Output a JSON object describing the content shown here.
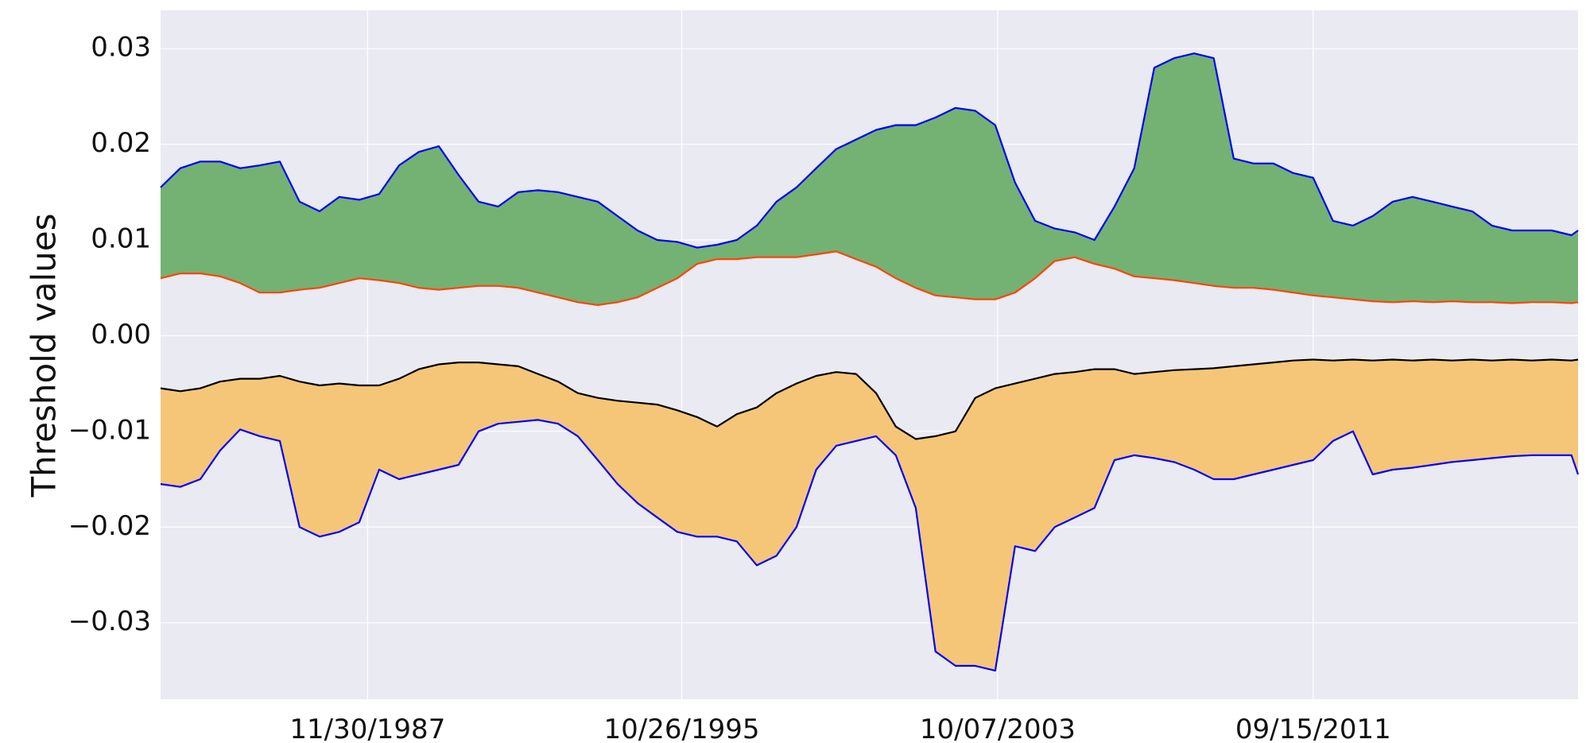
{
  "chart_data": {
    "type": "area",
    "title": "",
    "xlabel": "",
    "ylabel": "Threshold values",
    "x_ticks": [
      "11/30/1987",
      "10/26/1995",
      "10/07/2003",
      "09/15/2011"
    ],
    "x_range": [
      "1982-09-15",
      "2018-05-15"
    ],
    "ylim": [
      -0.038,
      0.034
    ],
    "y_ticks": [
      0.03,
      0.02,
      0.01,
      0.0,
      -0.01,
      -0.02,
      -0.03
    ],
    "y_tick_labels": [
      "0.03",
      "0.02",
      "0.01",
      "0.00",
      "−0.01",
      "−0.02",
      "−0.03"
    ],
    "grid": true,
    "colors": {
      "background": "#eaeaf2",
      "grid": "#ffffff",
      "upper_outer": "#0000ff",
      "upper_inner": "#ff4500",
      "upper_fill": "#73b273",
      "lower_inner": "#000000",
      "lower_outer": "#0000ff",
      "lower_fill": "#f5c678"
    },
    "dates": [
      "1982-09-15",
      "1983-03-15",
      "1983-09-15",
      "1984-03-15",
      "1984-09-15",
      "1985-03-15",
      "1985-09-15",
      "1986-03-15",
      "1986-09-15",
      "1987-03-15",
      "1987-09-15",
      "1988-03-15",
      "1988-09-15",
      "1989-03-15",
      "1989-09-15",
      "1990-03-15",
      "1990-09-15",
      "1991-03-15",
      "1991-09-15",
      "1992-03-15",
      "1992-09-15",
      "1993-03-15",
      "1993-09-15",
      "1994-03-15",
      "1994-09-15",
      "1995-03-15",
      "1995-09-15",
      "1996-03-15",
      "1996-09-15",
      "1997-03-15",
      "1997-09-15",
      "1998-03-15",
      "1998-09-15",
      "1999-03-15",
      "1999-09-15",
      "2000-03-15",
      "2000-09-15",
      "2001-03-15",
      "2001-09-15",
      "2002-03-15",
      "2002-09-15",
      "2003-03-15",
      "2003-09-15",
      "2004-03-15",
      "2004-09-15",
      "2005-03-15",
      "2005-09-15",
      "2006-03-15",
      "2006-09-15",
      "2007-03-15",
      "2007-09-15",
      "2008-03-15",
      "2008-09-15",
      "2009-03-15",
      "2009-09-15",
      "2010-03-15",
      "2010-09-15",
      "2011-03-15",
      "2011-09-15",
      "2012-03-15",
      "2012-09-15",
      "2013-03-15",
      "2013-09-15",
      "2014-03-15",
      "2014-09-15",
      "2015-03-15",
      "2015-09-15",
      "2016-03-15",
      "2016-09-15",
      "2017-03-15",
      "2017-09-15",
      "2018-03-15",
      "2018-05-15"
    ],
    "series": [
      {
        "role": "upper_outer",
        "values": [
          0.0155,
          0.0175,
          0.0182,
          0.0182,
          0.0175,
          0.0178,
          0.0182,
          0.014,
          0.013,
          0.0145,
          0.0142,
          0.0148,
          0.0178,
          0.0192,
          0.0198,
          0.0168,
          0.014,
          0.0135,
          0.015,
          0.0152,
          0.015,
          0.0145,
          0.014,
          0.0125,
          0.011,
          0.01,
          0.0098,
          0.0092,
          0.0095,
          0.01,
          0.0115,
          0.014,
          0.0155,
          0.0175,
          0.0195,
          0.0205,
          0.0215,
          0.022,
          0.022,
          0.0228,
          0.0238,
          0.0235,
          0.022,
          0.016,
          0.012,
          0.0112,
          0.0108,
          0.01,
          0.0135,
          0.0175,
          0.028,
          0.029,
          0.0295,
          0.029,
          0.0185,
          0.018,
          0.018,
          0.017,
          0.0165,
          0.012,
          0.0115,
          0.0125,
          0.014,
          0.0145,
          0.014,
          0.0135,
          0.013,
          0.0115,
          0.011,
          0.011,
          0.011,
          0.0105,
          0.011
        ]
      },
      {
        "role": "upper_inner",
        "values": [
          0.006,
          0.0065,
          0.0065,
          0.0062,
          0.0055,
          0.0045,
          0.0045,
          0.0048,
          0.005,
          0.0055,
          0.006,
          0.0058,
          0.0055,
          0.005,
          0.0048,
          0.005,
          0.0052,
          0.0052,
          0.005,
          0.0045,
          0.004,
          0.0035,
          0.0032,
          0.0035,
          0.004,
          0.005,
          0.006,
          0.0075,
          0.008,
          0.008,
          0.0082,
          0.0082,
          0.0082,
          0.0085,
          0.0088,
          0.008,
          0.0072,
          0.006,
          0.005,
          0.0042,
          0.004,
          0.0038,
          0.0038,
          0.0045,
          0.006,
          0.0078,
          0.0082,
          0.0075,
          0.007,
          0.0062,
          0.006,
          0.0058,
          0.0055,
          0.0052,
          0.005,
          0.005,
          0.0048,
          0.0045,
          0.0042,
          0.004,
          0.0038,
          0.0036,
          0.0035,
          0.0036,
          0.0035,
          0.0036,
          0.0035,
          0.0035,
          0.0034,
          0.0035,
          0.0035,
          0.0034,
          0.0035
        ]
      },
      {
        "role": "lower_inner",
        "values": [
          -0.0055,
          -0.0058,
          -0.0055,
          -0.0048,
          -0.0045,
          -0.0045,
          -0.0042,
          -0.0048,
          -0.0052,
          -0.005,
          -0.0052,
          -0.0052,
          -0.0045,
          -0.0035,
          -0.003,
          -0.0028,
          -0.0028,
          -0.003,
          -0.0032,
          -0.004,
          -0.0048,
          -0.006,
          -0.0065,
          -0.0068,
          -0.007,
          -0.0072,
          -0.0078,
          -0.0085,
          -0.0095,
          -0.0082,
          -0.0075,
          -0.006,
          -0.005,
          -0.0042,
          -0.0038,
          -0.004,
          -0.006,
          -0.0095,
          -0.0108,
          -0.0105,
          -0.01,
          -0.0065,
          -0.0055,
          -0.005,
          -0.0045,
          -0.004,
          -0.0038,
          -0.0035,
          -0.0035,
          -0.004,
          -0.0038,
          -0.0036,
          -0.0035,
          -0.0034,
          -0.0032,
          -0.003,
          -0.0028,
          -0.0026,
          -0.0025,
          -0.0026,
          -0.0025,
          -0.0026,
          -0.0025,
          -0.0026,
          -0.0025,
          -0.0026,
          -0.0025,
          -0.0026,
          -0.0025,
          -0.0026,
          -0.0025,
          -0.0026,
          -0.0025
        ]
      },
      {
        "role": "lower_outer",
        "values": [
          -0.0155,
          -0.0158,
          -0.015,
          -0.012,
          -0.0098,
          -0.0105,
          -0.011,
          -0.02,
          -0.021,
          -0.0205,
          -0.0195,
          -0.014,
          -0.015,
          -0.0145,
          -0.014,
          -0.0135,
          -0.01,
          -0.0092,
          -0.009,
          -0.0088,
          -0.0092,
          -0.0105,
          -0.013,
          -0.0155,
          -0.0175,
          -0.019,
          -0.0205,
          -0.021,
          -0.021,
          -0.0215,
          -0.024,
          -0.023,
          -0.02,
          -0.014,
          -0.0115,
          -0.011,
          -0.0105,
          -0.0125,
          -0.018,
          -0.033,
          -0.0345,
          -0.0345,
          -0.035,
          -0.022,
          -0.0225,
          -0.02,
          -0.019,
          -0.018,
          -0.013,
          -0.0125,
          -0.0128,
          -0.0132,
          -0.014,
          -0.015,
          -0.015,
          -0.0145,
          -0.014,
          -0.0135,
          -0.013,
          -0.011,
          -0.01,
          -0.0145,
          -0.014,
          -0.0138,
          -0.0135,
          -0.0132,
          -0.013,
          -0.0128,
          -0.0126,
          -0.0125,
          -0.0125,
          -0.0125,
          -0.0145
        ]
      }
    ]
  }
}
